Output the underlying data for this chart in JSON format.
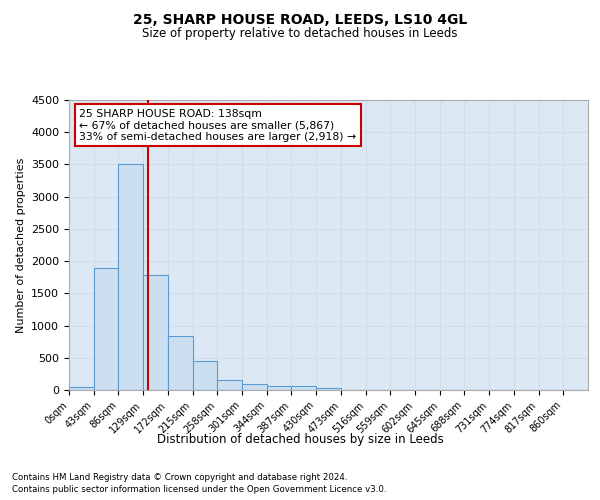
{
  "title": "25, SHARP HOUSE ROAD, LEEDS, LS10 4GL",
  "subtitle": "Size of property relative to detached houses in Leeds",
  "xlabel": "Distribution of detached houses by size in Leeds",
  "ylabel": "Number of detached properties",
  "footnote1": "Contains HM Land Registry data © Crown copyright and database right 2024.",
  "footnote2": "Contains public sector information licensed under the Open Government Licence v3.0.",
  "bar_labels": [
    "0sqm",
    "43sqm",
    "86sqm",
    "129sqm",
    "172sqm",
    "215sqm",
    "258sqm",
    "301sqm",
    "344sqm",
    "387sqm",
    "430sqm",
    "473sqm",
    "516sqm",
    "559sqm",
    "602sqm",
    "645sqm",
    "688sqm",
    "731sqm",
    "774sqm",
    "817sqm",
    "860sqm"
  ],
  "bar_heights": [
    50,
    1900,
    3500,
    1780,
    840,
    455,
    160,
    100,
    65,
    55,
    35,
    0,
    0,
    0,
    0,
    0,
    0,
    0,
    0,
    0,
    0
  ],
  "bar_color": "#ccdff0",
  "bar_edge_color": "#5b9bd5",
  "ylim": [
    0,
    4500
  ],
  "yticks": [
    0,
    500,
    1000,
    1500,
    2000,
    2500,
    3000,
    3500,
    4000,
    4500
  ],
  "property_line_x": 138,
  "bin_width": 43,
  "annotation_title": "25 SHARP HOUSE ROAD: 138sqm",
  "annotation_line1": "← 67% of detached houses are smaller (5,867)",
  "annotation_line2": "33% of semi-detached houses are larger (2,918) →",
  "annotation_box_color": "#ffffff",
  "annotation_box_edge_color": "#cc0000",
  "vline_color": "#cc0000",
  "grid_color": "#d0dce8",
  "background_color": "#dce9f5"
}
